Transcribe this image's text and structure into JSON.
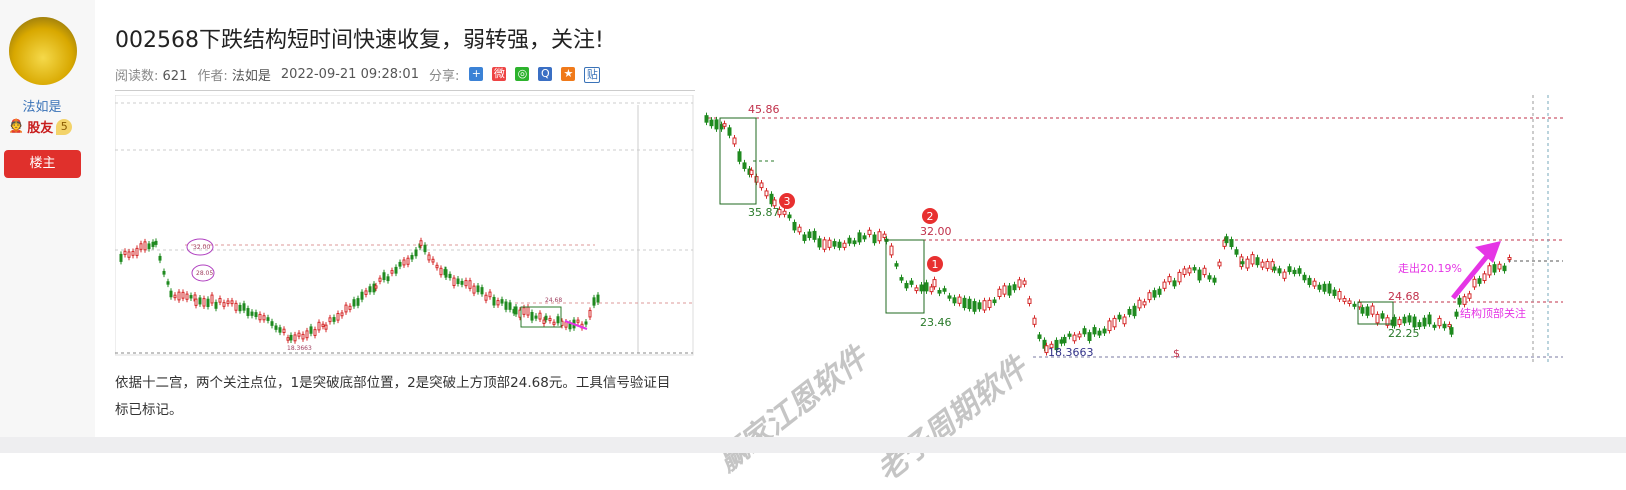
{
  "sidebar": {
    "username": "法如是",
    "role": "股友",
    "level": "5",
    "owner_button": "楼主"
  },
  "post": {
    "title": "002568下跌结构短时间快速收复，弱转强，关注!",
    "reads_label": "阅读数:",
    "reads": "621",
    "author_label": "作者:",
    "author": "法如是",
    "datetime": "2022-09-21 09:28:01",
    "share_label": "分享:",
    "share_icons": [
      "plus-share-icon",
      "weibo-icon",
      "wechat-icon",
      "qq-icon",
      "qzone-icon",
      "tieba-icon"
    ],
    "body": "依据十二宫，两个关注点位，1是突破底部位置，2是突破上方顶部24.68元。工具信号验证目标已标记。"
  },
  "chart": {
    "levels": {
      "top": "45.86",
      "box1_low": "35.87",
      "level2": "32.00",
      "box2_low": "23.46",
      "bottom": "18.3663",
      "level_top": "24.68",
      "box3_low": "22.25"
    },
    "markers": [
      "3",
      "2",
      "1"
    ],
    "annotation_gain": "走出20.19%",
    "annotation_watch": "结构顶部关注",
    "dollar": "$",
    "left_labels": {
      "l1": "32.00",
      "l2": "28.05",
      "low": "18.3663",
      "box": "24.68"
    },
    "colors": {
      "up": "#d42a2a",
      "down": "#1f8a1f",
      "level": "#c0304a",
      "arrow": "#e535e5"
    }
  },
  "watermarks": [
    "赢家江恩软件",
    "老子周期软件"
  ]
}
